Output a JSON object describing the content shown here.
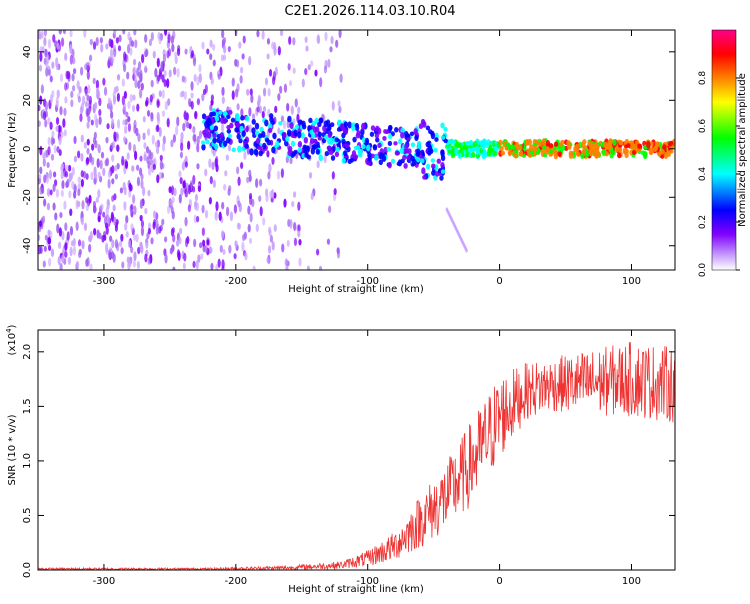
{
  "chart_data": [
    {
      "type": "heatmap",
      "title": "C2E1.2026.114.03.10.R04",
      "xlabel": "Height of straight line (km)",
      "ylabel": "Frequency (Hz)",
      "xlim": [
        -350,
        133
      ],
      "ylim": [
        -50,
        49
      ],
      "xticks": [
        -300,
        -200,
        -100,
        0,
        100
      ],
      "yticks": [
        -40,
        -20,
        0,
        20,
        40
      ],
      "colorbar": {
        "label": "Normalized spectral amplitude",
        "range": [
          0,
          1
        ],
        "ticks": [
          "0.0",
          "0.2",
          "0.4",
          "0.6",
          "0.8"
        ],
        "colors": [
          "#ffffff",
          "#c8a0ff",
          "#8000ff",
          "#0000ff",
          "#00ffff",
          "#00ff00",
          "#ffff00",
          "#ff8000",
          "#ff0000",
          "#ff0088"
        ]
      },
      "features": {
        "noise_region_x": [
          -350,
          -150
        ],
        "narrowband_line_x": [
          -170,
          133
        ],
        "narrowband_line_freq": 0,
        "strongest_signal_x": [
          -40,
          133
        ],
        "faint_diagonal": {
          "x": [
            -40,
            -25
          ],
          "freq": [
            -25,
            -42
          ]
        }
      }
    },
    {
      "type": "line",
      "xlabel": "Height of straight line (km)",
      "ylabel": "SNR (10 * v/v)",
      "y_multiplier": "(x10",
      "y_multiplier_exp": "4",
      "y_multiplier_close": ")",
      "xlim": [
        -350,
        133
      ],
      "ylim": [
        0,
        2.2
      ],
      "xticks": [
        -300,
        -200,
        -100,
        0,
        100
      ],
      "yticks": [
        "0.0",
        "0.5",
        "1.0",
        "1.5",
        "2.0"
      ],
      "color": "#ee3333",
      "envelope": {
        "x": [
          -350,
          -220,
          -160,
          -120,
          -100,
          -80,
          -60,
          -40,
          -20,
          0,
          20,
          40,
          60,
          100,
          133
        ],
        "lo": [
          0.0,
          0.0,
          0.0,
          0.01,
          0.03,
          0.08,
          0.2,
          0.35,
          0.6,
          1.0,
          1.38,
          1.45,
          1.42,
          1.4,
          1.35
        ],
        "hi": [
          0.02,
          0.02,
          0.04,
          0.08,
          0.18,
          0.35,
          0.7,
          1.0,
          1.4,
          1.8,
          1.9,
          1.95,
          2.0,
          2.1,
          2.05
        ]
      }
    }
  ]
}
